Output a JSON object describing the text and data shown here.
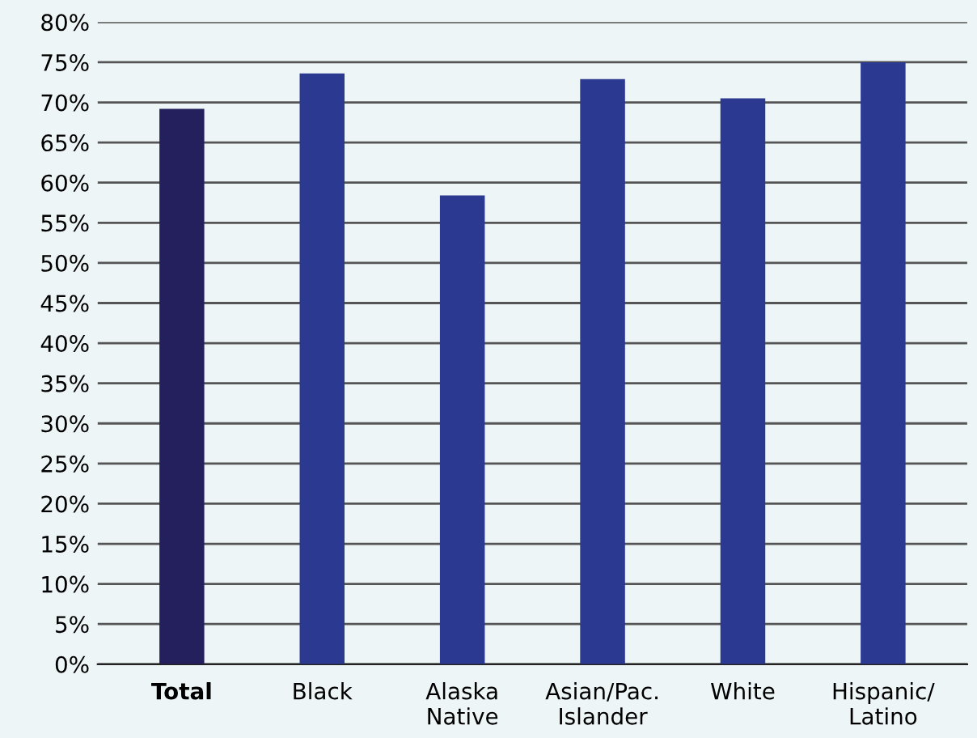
{
  "chart_data": {
    "type": "bar",
    "categories": [
      "Total",
      "Black",
      "Alaska\nNative",
      "Asian/Pac.\nIslander",
      "White",
      "Hispanic/\nLatino"
    ],
    "values": [
      69.2,
      73.6,
      58.4,
      72.9,
      70.5,
      75
    ],
    "colors": [
      "#24205e",
      "#2b3990",
      "#2b3990",
      "#2b3990",
      "#2b3990",
      "#2b3990"
    ],
    "ylim": [
      0,
      80
    ],
    "yticks": [
      {
        "value": 0,
        "label": "0%"
      },
      {
        "value": 5,
        "label": "5%"
      },
      {
        "value": 10,
        "label": "10%"
      },
      {
        "value": 15,
        "label": "15%"
      },
      {
        "value": 20,
        "label": "20%"
      },
      {
        "value": 25,
        "label": "25%"
      },
      {
        "value": 30,
        "label": "30%"
      },
      {
        "value": 35,
        "label": "35%"
      },
      {
        "value": 40,
        "label": "40%"
      },
      {
        "value": 45,
        "label": "45%"
      },
      {
        "value": 50,
        "label": "50%"
      },
      {
        "value": 55,
        "label": "55%"
      },
      {
        "value": 60,
        "label": "60%"
      },
      {
        "value": 65,
        "label": "65%"
      },
      {
        "value": 70,
        "label": "70%"
      },
      {
        "value": 75,
        "label": "75%"
      },
      {
        "value": 80,
        "label": "80%"
      }
    ],
    "grid": "y",
    "legend": false
  }
}
